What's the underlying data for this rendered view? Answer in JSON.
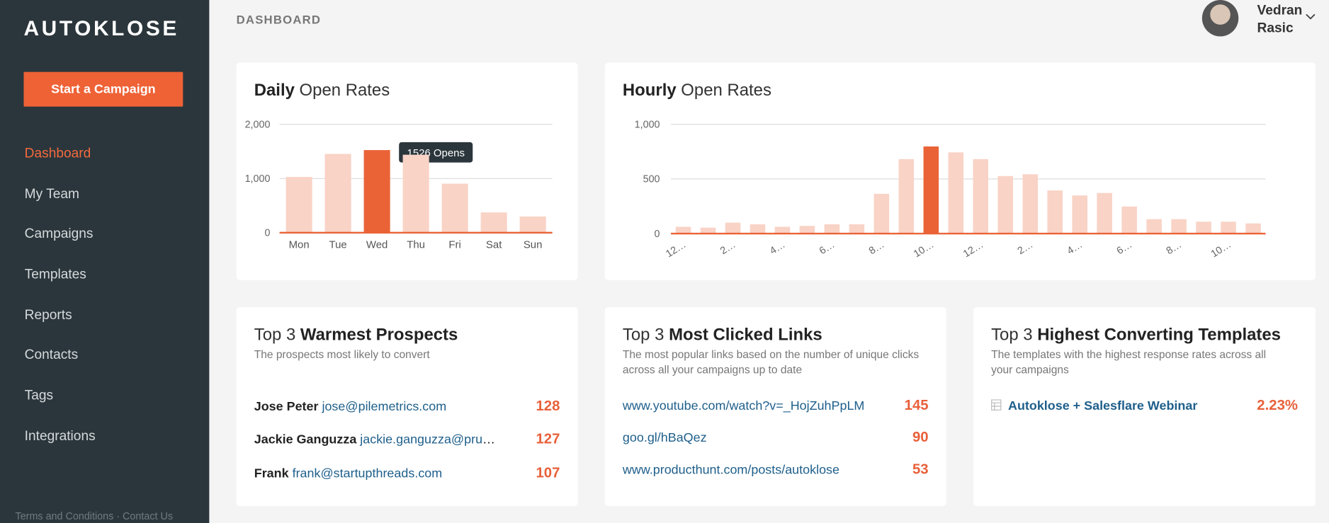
{
  "sidebar": {
    "logo": "AUTOKLOSE",
    "button": "Start a Campaign",
    "nav": [
      "Dashboard",
      "My Team",
      "Campaigns",
      "Templates",
      "Reports",
      "Contacts",
      "Tags",
      "Integrations"
    ],
    "footer": "Terms and Conditions · Contact Us"
  },
  "header": {
    "title": "DASHBOARD",
    "user": [
      "Vedran",
      "Rasic"
    ]
  },
  "chart_data": [
    {
      "type": "bar",
      "title_emphasis": "Daily",
      "title": "Open Rates",
      "categories": [
        "Mon",
        "Tue",
        "Wed",
        "Thu",
        "Fri",
        "Sat",
        "Sun"
      ],
      "values": [
        1030,
        1455,
        1526,
        1440,
        906,
        375,
        300
      ],
      "colors": [
        "#f9d3c6",
        "#f9d3c6",
        "#ea6337",
        "#f9d3c6",
        "#f9d3c6",
        "#f9d3c6",
        "#f9d3c6"
      ],
      "tooltip": "1526 Opens",
      "ylim": [
        0,
        2000
      ],
      "yticks": [
        0,
        {
          "value": 1000,
          "label": "1,000"
        },
        {
          "value": 2000,
          "label": "2,000"
        }
      ],
      "grid": true
    },
    {
      "type": "bar",
      "title_emphasis": "Hourly",
      "title": "Open Rates",
      "categories": [
        "12…",
        null,
        "2…",
        null,
        "4…",
        null,
        "6…",
        null,
        "8…",
        null,
        "10…",
        null,
        "12…",
        null,
        "2…",
        null,
        "4…",
        null,
        "6…",
        null,
        "8…",
        null,
        "10…",
        null
      ],
      "values": [
        62,
        54,
        100,
        85,
        62,
        70,
        85,
        85,
        364,
        682,
        798,
        744,
        682,
        527,
        543,
        395,
        349,
        372,
        248,
        132,
        132,
        109,
        109,
        93
      ],
      "colors": [
        "#f9d3c6",
        "#f9d3c6",
        "#f9d3c6",
        "#f9d3c6",
        "#f9d3c6",
        "#f9d3c6",
        "#f9d3c6",
        "#f9d3c6",
        "#f9d3c6",
        "#f9d3c6",
        "#ea6337",
        "#f9d3c6",
        "#f9d3c6",
        "#f9d3c6",
        "#f9d3c6",
        "#f9d3c6",
        "#f9d3c6",
        "#f9d3c6",
        "#f9d3c6",
        "#f9d3c6",
        "#f9d3c6",
        "#f9d3c6",
        "#f9d3c6",
        "#f9d3c6"
      ],
      "ylim": [
        0,
        1000
      ],
      "yticks": [
        0,
        500,
        {
          "value": 1000,
          "label": "1,000"
        }
      ],
      "grid": true
    }
  ],
  "cards": [
    {
      "title_prefix": "Top 3",
      "title_emphasis": "Warmest Prospects",
      "subtitle": "The prospects most likely to convert",
      "rows": [
        {
          "name": "Jose Peter",
          "email": "jose@pilemetrics.com",
          "value": 128
        },
        {
          "name": "Jackie Ganguzza",
          "email": "jackie.ganguzza@prudential.com",
          "value": 127
        },
        {
          "name": "Frank",
          "email": "frank@startupthreads.com",
          "value": 107
        }
      ]
    },
    {
      "title_prefix": "Top 3",
      "title_emphasis": "Most Clicked Links",
      "subtitle": "The most popular links based on the number of unique clicks across all your campaigns up to date",
      "rows": [
        {
          "link": "www.youtube.com/watch?v=_HojZuhPpLM",
          "value": 145
        },
        {
          "link": "goo.gl/hBaQez",
          "value": 90
        },
        {
          "link": "www.producthunt.com/posts/autoklose",
          "value": 53
        }
      ]
    },
    {
      "title_prefix": "Top 3",
      "title_emphasis": "Highest Converting Templates",
      "subtitle": "The templates with the highest response rates across all your campaigns",
      "rows": [
        {
          "link": "Autoklose + Salesflare Webinar",
          "value": "2.23%"
        }
      ]
    }
  ]
}
